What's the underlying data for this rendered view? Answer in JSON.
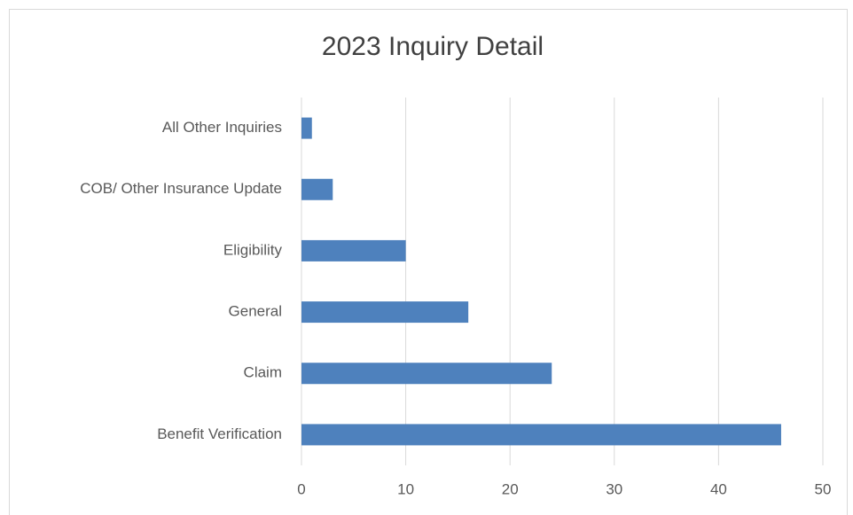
{
  "chart_data": {
    "type": "barh",
    "title": "2023 Inquiry Detail",
    "categories": [
      "Benefit Verification",
      "Claim",
      "General",
      "Eligibility",
      "COB/ Other Insurance Update",
      "All Other Inquiries"
    ],
    "values": [
      46,
      24,
      16,
      10,
      3,
      1
    ],
    "color": "#4e81bd",
    "xlim": [
      0,
      50
    ],
    "xticks": [
      0,
      10,
      20,
      30,
      40,
      50
    ],
    "grid": true
  }
}
